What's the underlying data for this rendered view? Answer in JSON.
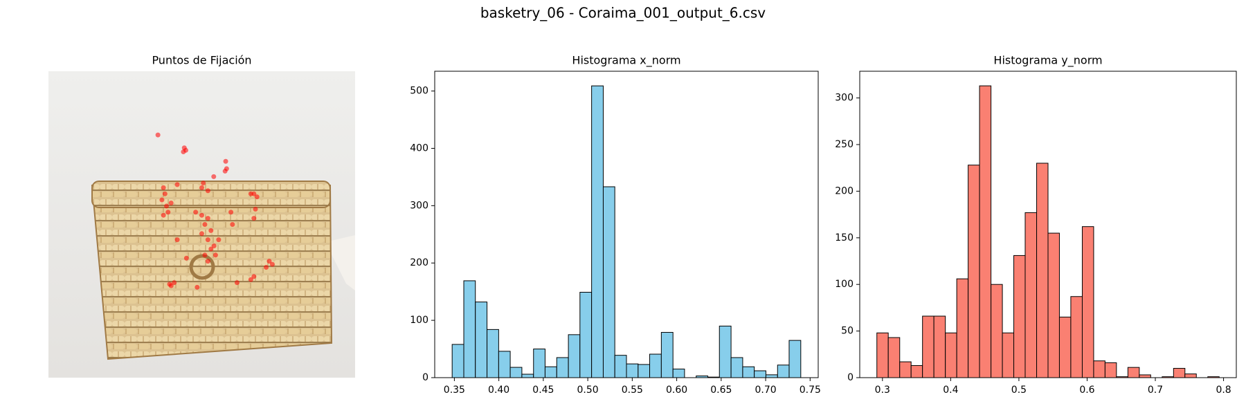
{
  "title": "basketry_06 - Coraima_001_output_6.csv",
  "chart_data": [
    {
      "type": "scatter",
      "title": "Puntos de Fijación",
      "color": "#ff0000",
      "xlim": [
        0,
        1
      ],
      "ylim": [
        1,
        0
      ],
      "x": [
        0.357,
        0.443,
        0.44,
        0.448,
        0.578,
        0.576,
        0.581,
        0.539,
        0.375,
        0.38,
        0.37,
        0.385,
        0.39,
        0.375,
        0.4,
        0.48,
        0.5,
        0.51,
        0.52,
        0.53,
        0.5,
        0.52,
        0.54,
        0.51,
        0.53,
        0.52,
        0.545,
        0.66,
        0.67,
        0.68,
        0.675,
        0.67,
        0.72,
        0.73,
        0.71,
        0.66,
        0.67,
        0.4,
        0.41,
        0.395,
        0.485,
        0.615,
        0.45,
        0.505,
        0.5,
        0.42,
        0.52,
        0.595,
        0.6,
        0.555,
        0.42
      ],
      "y": [
        0.208,
        0.25,
        0.263,
        0.258,
        0.294,
        0.326,
        0.318,
        0.344,
        0.38,
        0.4,
        0.42,
        0.44,
        0.46,
        0.47,
        0.43,
        0.46,
        0.47,
        0.5,
        0.48,
        0.52,
        0.53,
        0.55,
        0.57,
        0.6,
        0.58,
        0.62,
        0.6,
        0.4,
        0.4,
        0.41,
        0.45,
        0.48,
        0.62,
        0.63,
        0.64,
        0.68,
        0.67,
        0.7,
        0.69,
        0.695,
        0.705,
        0.69,
        0.61,
        0.365,
        0.38,
        0.37,
        0.39,
        0.46,
        0.5,
        0.55,
        0.55
      ]
    },
    {
      "type": "histogram",
      "title": "Histograma x_norm",
      "color": "#87ceeb",
      "bins": [
        0.3475,
        0.3606,
        0.3736,
        0.3867,
        0.3998,
        0.4128,
        0.4259,
        0.439,
        0.452,
        0.4651,
        0.4782,
        0.4912,
        0.5043,
        0.5174,
        0.5304,
        0.5435,
        0.5566,
        0.5696,
        0.5827,
        0.5958,
        0.6088,
        0.6219,
        0.635,
        0.648,
        0.6611,
        0.6742,
        0.6872,
        0.7003,
        0.7134,
        0.7264,
        0.7395
      ],
      "values": [
        58,
        169,
        132,
        84,
        46,
        18,
        6,
        50,
        19,
        35,
        75,
        149,
        509,
        333,
        39,
        24,
        23,
        41,
        79,
        15,
        0,
        3,
        1,
        90,
        35,
        19,
        12,
        5,
        22,
        65
      ],
      "xlim": [
        0.3279,
        0.7591
      ],
      "ylim": [
        0,
        534.5
      ],
      "xticks": [
        0.35,
        {
          "value": 0.4,
          "label": "0.40"
        },
        0.45,
        {
          "value": 0.5,
          "label": "0.50"
        },
        0.55,
        {
          "value": 0.6,
          "label": "0.60"
        },
        0.65,
        {
          "value": 0.7,
          "label": "0.70"
        },
        0.75
      ],
      "yticks": [
        0,
        100,
        200,
        300,
        400,
        500
      ]
    },
    {
      "type": "histogram",
      "title": "Histograma y_norm",
      "color": "#fa8072",
      "bins": [
        0.2918,
        0.3085,
        0.3253,
        0.342,
        0.3587,
        0.3754,
        0.3922,
        0.4089,
        0.4256,
        0.4423,
        0.4591,
        0.4758,
        0.4925,
        0.5092,
        0.526,
        0.5427,
        0.5594,
        0.5761,
        0.5929,
        0.6096,
        0.6263,
        0.643,
        0.6598,
        0.6765,
        0.6932,
        0.71,
        0.7267,
        0.7434,
        0.7601,
        0.7769,
        0.7936
      ],
      "values": [
        48,
        43,
        17,
        13,
        66,
        66,
        48,
        106,
        228,
        313,
        100,
        48,
        131,
        177,
        230,
        155,
        65,
        87,
        162,
        18,
        16,
        1,
        11,
        3,
        0,
        1,
        10,
        4,
        0,
        1
      ],
      "xlim": [
        0.2667,
        0.8187
      ],
      "ylim": [
        0,
        328.65
      ],
      "xticks": [
        0.3,
        0.4,
        0.5,
        0.6,
        0.7,
        0.8
      ],
      "yticks": [
        0,
        50,
        100,
        150,
        200,
        250,
        300
      ]
    }
  ]
}
